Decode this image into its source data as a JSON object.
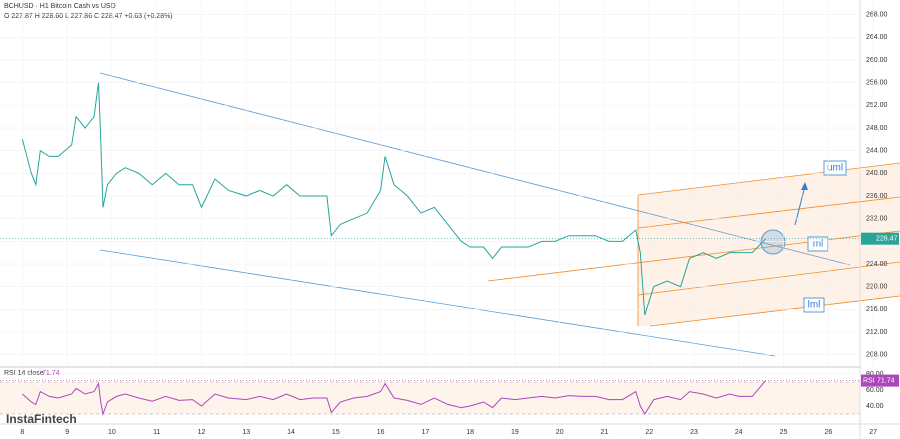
{
  "chart_data": [
    {
      "type": "line",
      "title": "BCHUSD · H1 Bitcoin Cash vs USD",
      "subtitle": "O 227.87 H 228.60 L 227.86 C 228.47 +0.63 (+0.28%)",
      "x": [
        8,
        8.2,
        8.3,
        8.4,
        8.6,
        8.8,
        9.1,
        9.2,
        9.4,
        9.6,
        9.7,
        9.75,
        9.8,
        9.9,
        10.1,
        10.3,
        10.6,
        10.9,
        11.2,
        11.5,
        11.8,
        12,
        12.3,
        12.6,
        13,
        13.3,
        13.6,
        13.9,
        14.2,
        14.5,
        14.8,
        14.9,
        15.1,
        15.4,
        15.7,
        16,
        16.1,
        16.3,
        16.6,
        16.9,
        17.2,
        17.5,
        17.8,
        18,
        18.3,
        18.5,
        18.7,
        19,
        19.3,
        19.6,
        19.9,
        20.2,
        20.5,
        20.8,
        21.1,
        21.4,
        21.7,
        21.8,
        21.9,
        22.1,
        22.4,
        22.7,
        22.9,
        23.2,
        23.5,
        23.8,
        24,
        24.3,
        24.6
      ],
      "values": [
        246,
        240,
        238,
        244,
        243,
        243,
        245,
        250,
        248,
        250,
        256,
        246,
        234,
        238,
        240,
        241,
        240,
        238,
        240,
        238,
        238,
        234,
        239,
        237,
        236,
        237,
        236,
        238,
        236,
        236,
        236,
        229,
        231,
        232,
        233,
        237,
        243,
        238,
        236,
        233,
        234,
        231,
        228,
        227,
        227,
        225,
        227,
        227,
        227,
        228,
        228,
        229,
        229,
        229,
        228,
        228,
        230,
        226,
        215,
        220,
        221,
        220,
        225,
        226,
        225,
        226,
        226,
        226,
        228.47
      ],
      "color": "#26a69a",
      "xlim": [
        7.5,
        27.6
      ],
      "xticks": [
        8,
        9,
        10,
        11,
        12,
        13,
        14,
        15,
        16,
        17,
        18,
        19,
        20,
        21,
        22,
        23,
        24,
        25,
        26,
        27
      ],
      "ylim": [
        206,
        270.6
      ],
      "yticks": [
        {
          "value": 208,
          "label": "208.00"
        },
        {
          "value": 212,
          "label": "212.00"
        },
        {
          "value": 216,
          "label": "216.00"
        },
        {
          "value": 220,
          "label": "220.00"
        },
        {
          "value": 224,
          "label": "224.00"
        },
        {
          "value": 228,
          "label": "228.00"
        },
        {
          "value": 232,
          "label": "232.00"
        },
        {
          "value": 236,
          "label": "236.00"
        },
        {
          "value": 240,
          "label": "240.00"
        },
        {
          "value": 244,
          "label": "244.00"
        },
        {
          "value": 248,
          "label": "248.00"
        },
        {
          "value": 252,
          "label": "252.00"
        },
        {
          "value": 256,
          "label": "256.00"
        },
        {
          "value": 260,
          "label": "260.00"
        },
        {
          "value": 264,
          "label": "264.00"
        },
        {
          "value": 268,
          "label": "268.00"
        }
      ],
      "annotations": [
        "uml",
        "ml",
        "lml"
      ],
      "watermark": "InstaFintech"
    },
    {
      "type": "line",
      "title": "RSI 14 close",
      "x": [
        8,
        8.2,
        8.3,
        8.4,
        8.6,
        8.8,
        9.1,
        9.2,
        9.4,
        9.6,
        9.7,
        9.75,
        9.8,
        9.9,
        10.1,
        10.3,
        10.6,
        10.9,
        11.2,
        11.5,
        11.8,
        12,
        12.3,
        12.6,
        13,
        13.3,
        13.6,
        13.9,
        14.2,
        14.5,
        14.8,
        14.9,
        15.1,
        15.4,
        15.7,
        16,
        16.1,
        16.3,
        16.6,
        16.9,
        17.2,
        17.5,
        17.8,
        18,
        18.3,
        18.5,
        18.7,
        19,
        19.3,
        19.6,
        19.9,
        20.2,
        20.5,
        20.8,
        21.1,
        21.4,
        21.7,
        21.8,
        21.9,
        22.1,
        22.4,
        22.7,
        22.9,
        23.2,
        23.5,
        23.8,
        24,
        24.3,
        24.6
      ],
      "series": [
        {
          "name": "RSI",
          "color": "#ab47bc",
          "values": [
            55,
            45,
            42,
            58,
            52,
            50,
            55,
            62,
            55,
            58,
            68,
            45,
            30,
            45,
            52,
            55,
            50,
            46,
            52,
            47,
            48,
            40,
            55,
            50,
            48,
            52,
            48,
            55,
            48,
            50,
            50,
            32,
            45,
            50,
            52,
            58,
            68,
            50,
            47,
            42,
            50,
            42,
            38,
            40,
            45,
            38,
            50,
            48,
            50,
            52,
            50,
            53,
            52,
            52,
            48,
            48,
            58,
            40,
            30,
            48,
            52,
            48,
            58,
            55,
            50,
            55,
            52,
            52,
            71.74
          ]
        }
      ],
      "xlim": [
        7.5,
        27.6
      ],
      "ylim": [
        25,
        87.5
      ],
      "yticks": [
        {
          "value": 40,
          "label": "40.00"
        },
        {
          "value": 60,
          "label": "60.00"
        },
        {
          "value": 80,
          "label": "80.00"
        }
      ]
    }
  ]
}
